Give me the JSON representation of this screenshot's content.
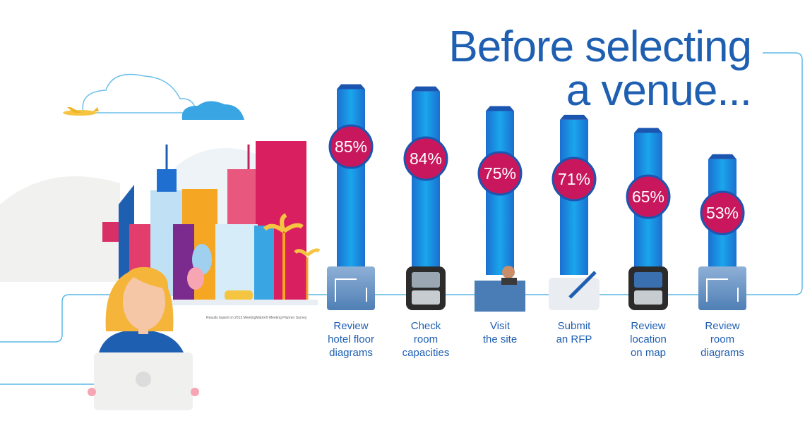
{
  "title_lines": [
    "Before selecting",
    "a venue..."
  ],
  "footnote": "Results based on 2013 MeetingMatrix® Meeting Planner Survey",
  "chart_data": {
    "type": "bar",
    "title": "Before selecting a venue...",
    "categories": [
      [
        "Review",
        "hotel floor",
        "diagrams"
      ],
      [
        "Check",
        "room",
        "capacities"
      ],
      [
        "Visit",
        "the site"
      ],
      [
        "Submit",
        "an RFP"
      ],
      [
        "Review",
        "location",
        "on map"
      ],
      [
        "Review",
        "room",
        "diagrams"
      ]
    ],
    "values": [
      85,
      84,
      75,
      71,
      65,
      53
    ],
    "value_labels": [
      "85%",
      "84%",
      "75%",
      "71%",
      "65%",
      "53%"
    ],
    "icons": [
      "floor-plan-icon",
      "calculator-icon",
      "receptionist-icon",
      "contract-icon",
      "map-navigation-icon",
      "room-diagram-icon"
    ],
    "ylim": [
      0,
      100
    ],
    "grid": false,
    "legend": "none",
    "colors": {
      "bar": "#1a8fe0",
      "bar_dark": "#1b55b0",
      "badge": "#c8175d",
      "badge_ring": "#ffffff",
      "title": "#1f5fb2",
      "line": "#5db8e6"
    }
  }
}
